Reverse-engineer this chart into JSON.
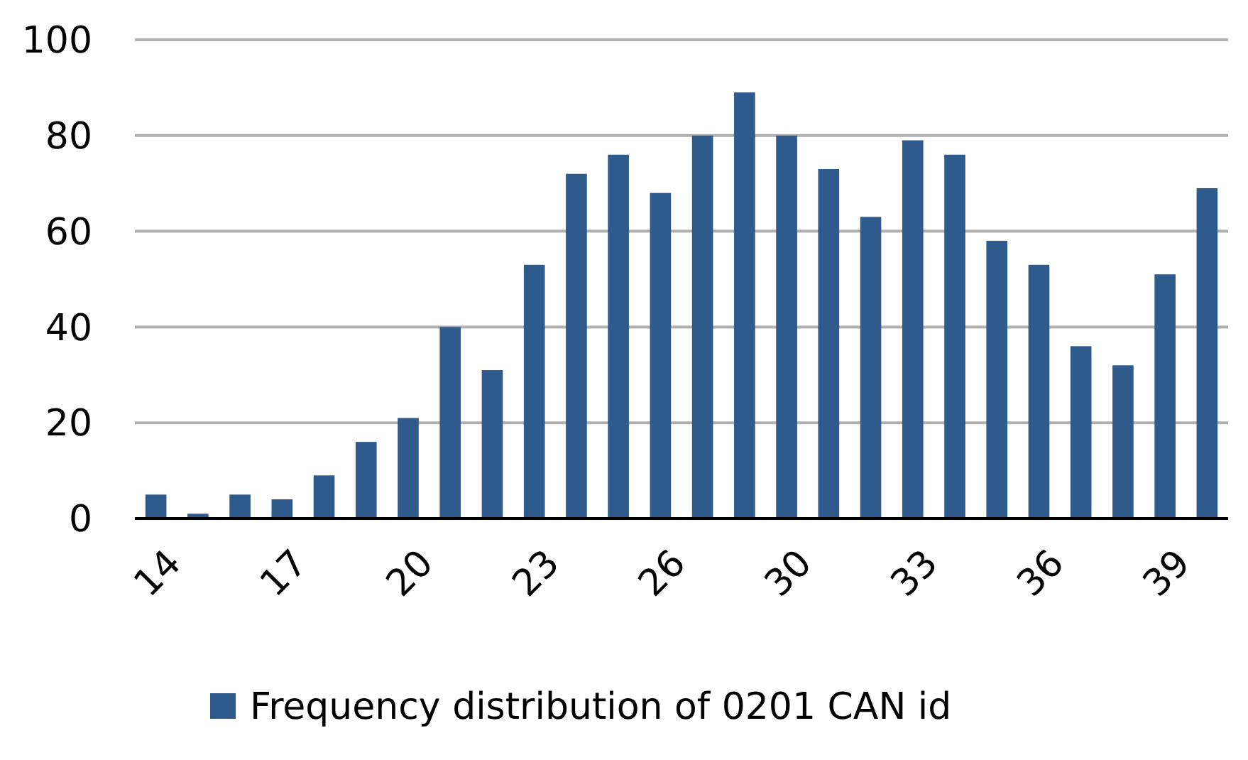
{
  "chart_data": {
    "type": "bar",
    "categories": [
      "14",
      null,
      null,
      "17",
      null,
      null,
      "20",
      null,
      null,
      "23",
      null,
      null,
      "26",
      null,
      null,
      "30",
      null,
      null,
      "33",
      null,
      null,
      "36",
      null,
      null,
      "39",
      null
    ],
    "series": [
      {
        "name": "Frequency distribution of 0201 CAN id",
        "color": "#2e5a8c",
        "values": [
          5,
          1,
          5,
          4,
          9,
          16,
          21,
          40,
          31,
          53,
          72,
          76,
          68,
          80,
          89,
          80,
          73,
          63,
          79,
          76,
          58,
          53,
          36,
          32,
          51,
          69
        ]
      }
    ],
    "ylim": [
      0,
      100
    ],
    "yticks": [
      0,
      20,
      40,
      60,
      80,
      100
    ],
    "grid": "y",
    "legend": "bottom"
  }
}
